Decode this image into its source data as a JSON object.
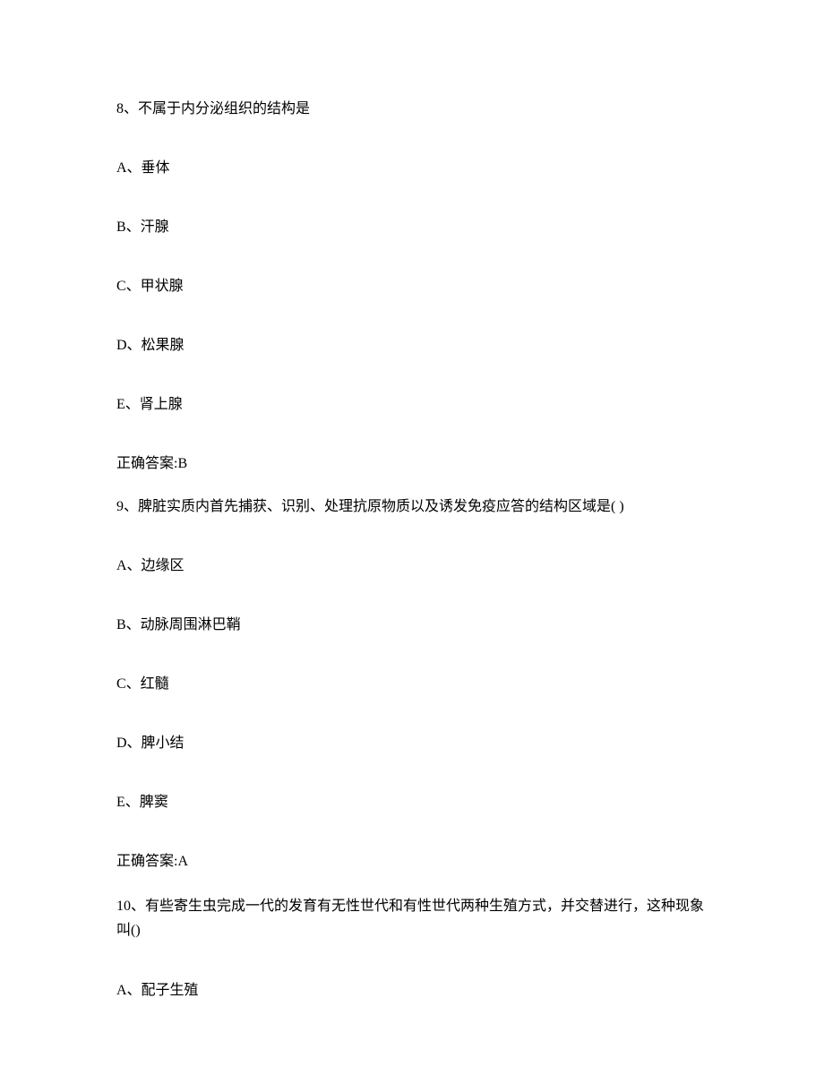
{
  "q8": {
    "stem": "8、不属于内分泌组织的结构是",
    "options": {
      "a": "A、垂体",
      "b": "B、汗腺",
      "c": "C、甲状腺",
      "d": "D、松果腺",
      "e": "E、肾上腺"
    },
    "answer": "正确答案:B"
  },
  "q9": {
    "stem": "9、脾脏实质内首先捕获、识别、处理抗原物质以及诱发免疫应答的结构区域是( )",
    "options": {
      "a": "A、边缘区",
      "b": "B、动脉周围淋巴鞘",
      "c": "C、红髓",
      "d": "D、脾小结",
      "e": "E、脾窦"
    },
    "answer": "正确答案:A"
  },
  "q10": {
    "stem": "10、有些寄生虫完成一代的发育有无性世代和有性世代两种生殖方式，并交替进行，这种现象叫()",
    "options": {
      "a": "A、配子生殖"
    }
  },
  "style": {
    "text_color": "#000000",
    "background_color": "#ffffff",
    "font_family": "SimSun",
    "font_size_pt": 12
  }
}
